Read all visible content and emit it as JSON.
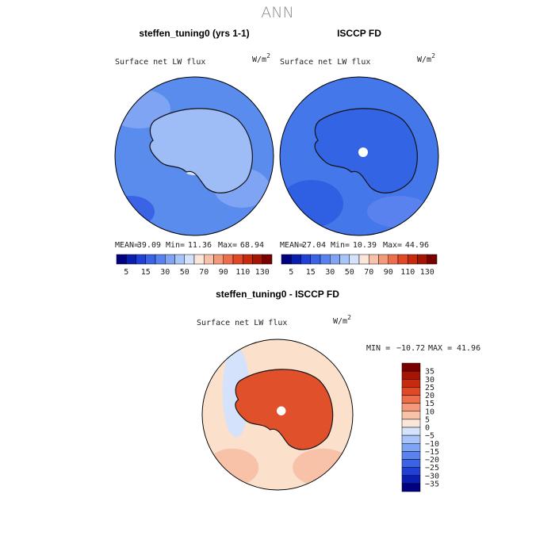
{
  "title": "ANN",
  "panels": [
    {
      "title": "steffen_tuning0 (yrs 1-1)",
      "label": "Surface net LW flux",
      "units": "W/m",
      "units_sup": "2",
      "stats": [
        {
          "label": "MEAN=",
          "value": "39.09"
        },
        {
          "label": "Min=",
          "value": "11.36"
        },
        {
          "label": "Max=",
          "value": "68.94"
        }
      ]
    },
    {
      "title": "ISCCP FD",
      "label": "Surface net LW flux",
      "units": "W/m",
      "units_sup": "2",
      "stats": [
        {
          "label": "MEAN=",
          "value": "27.04"
        },
        {
          "label": "Min=",
          "value": "10.39"
        },
        {
          "label": "Max=",
          "value": "44.96"
        }
      ]
    }
  ],
  "colorbar": {
    "labels": [
      "5",
      "15",
      "30",
      "50",
      "70",
      "90",
      "110",
      "130"
    ],
    "colors": [
      "#000080",
      "#0a1fb0",
      "#2040d8",
      "#3b63e6",
      "#5a82ee",
      "#7fa4f4",
      "#a8c4f8",
      "#d4e2fb",
      "#fbe6da",
      "#f8c2a8",
      "#f49a7a",
      "#ee6e4c",
      "#e04826",
      "#c82a10",
      "#a51405",
      "#7a0000"
    ]
  },
  "diff": {
    "title": "steffen_tuning0 - ISCCP FD",
    "label": "Surface net LW flux",
    "units": "W/m",
    "units_sup": "2",
    "min_label": "MIN =",
    "min": "−10.72",
    "max_label": "MAX =",
    "max": "41.96",
    "colorbar": {
      "labels": [
        "35",
        "30",
        "25",
        "20",
        "15",
        "10",
        "5",
        "0",
        "−5",
        "−10",
        "−15",
        "−20",
        "−25",
        "−30",
        "−35"
      ],
      "colors": [
        "#7a0000",
        "#a51405",
        "#c82a10",
        "#e04826",
        "#ee6e4c",
        "#f49a7a",
        "#f8c2a8",
        "#fbe6da",
        "#d4e2fb",
        "#a8c4f8",
        "#7fa4f4",
        "#5a82ee",
        "#3b63e6",
        "#2040d8",
        "#0a1fb0",
        "#000080"
      ]
    }
  }
}
